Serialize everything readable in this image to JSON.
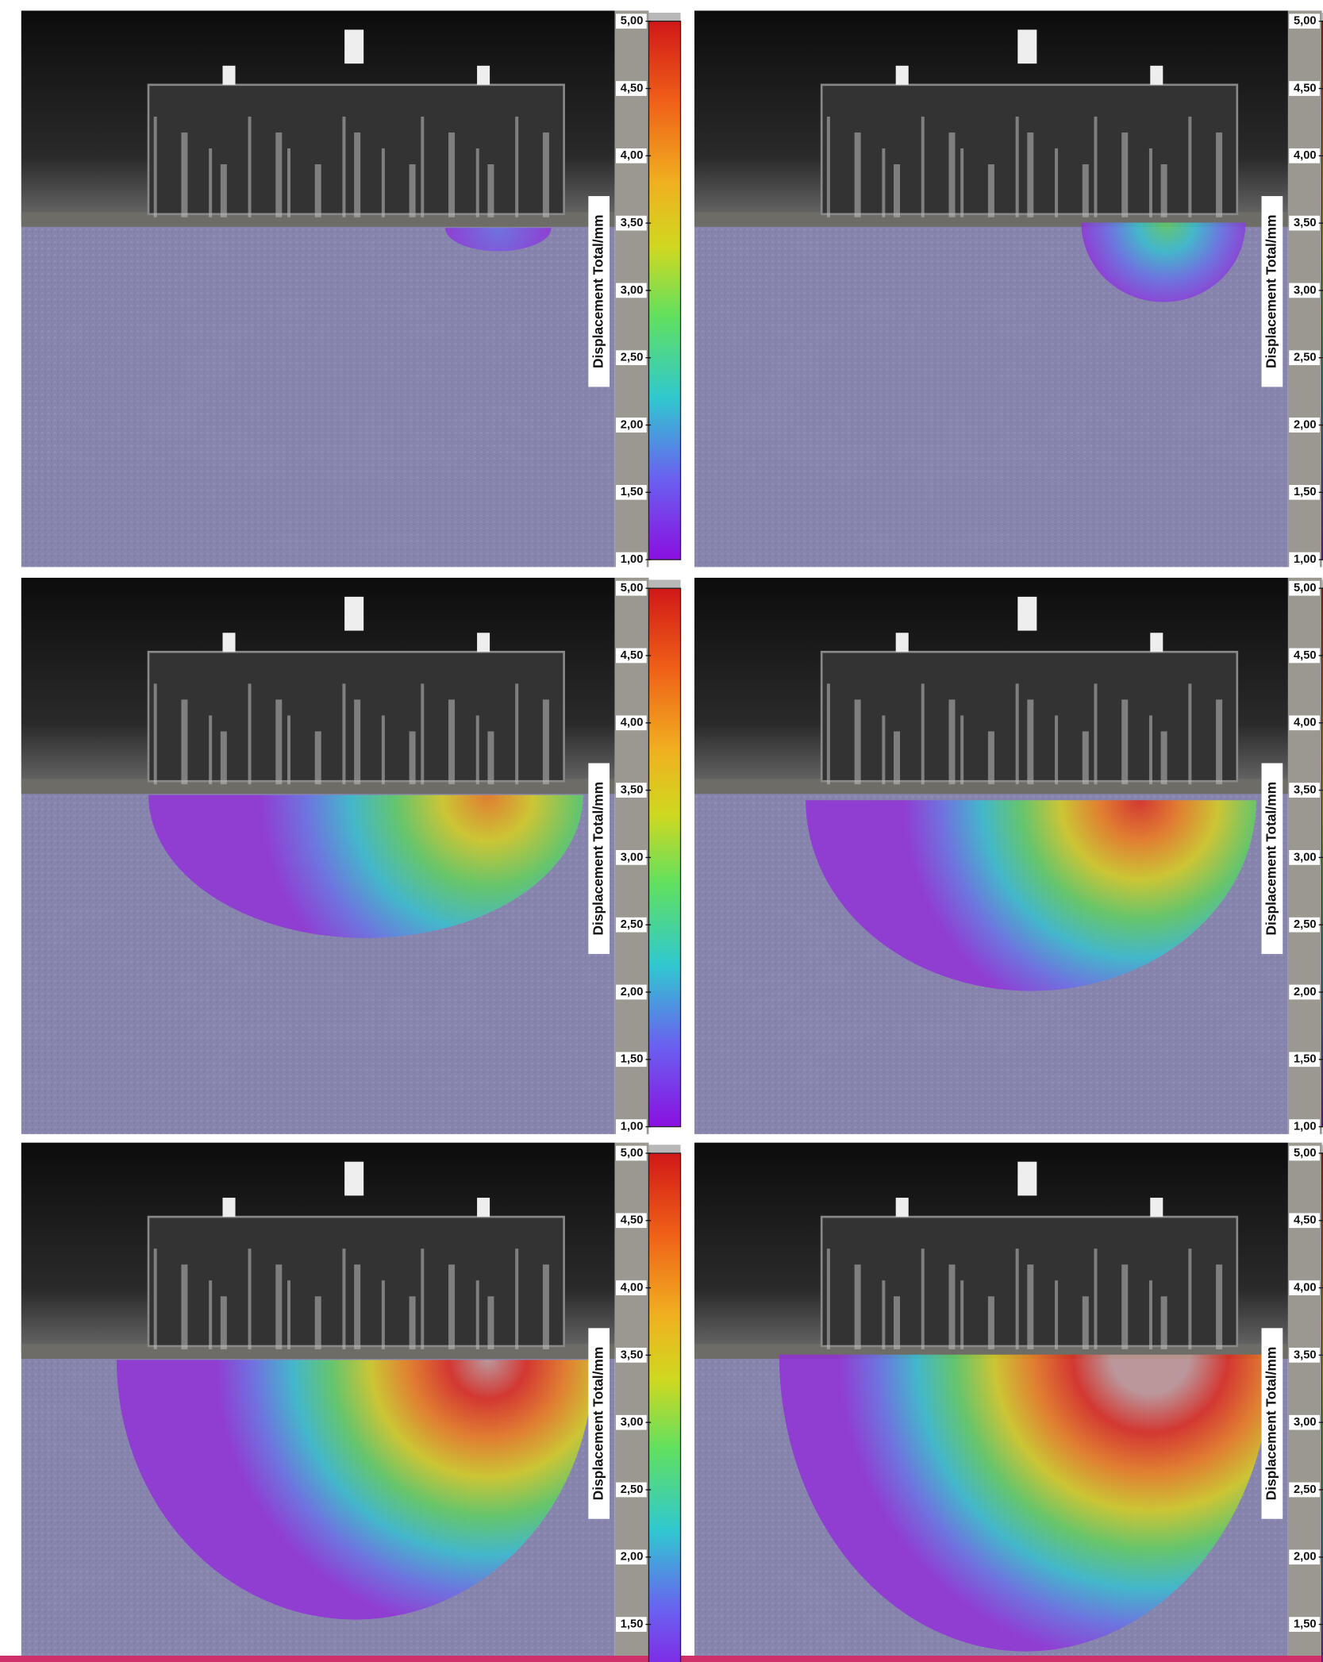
{
  "panels": [
    {
      "colorbar": {
        "label": "Displacement Total/mm",
        "lim": [
          1,
          5
        ],
        "ticks": [
          {
            "value": 5,
            "label": "5,00"
          },
          {
            "value": 4.5,
            "label": "4,50"
          },
          {
            "value": 4,
            "label": "4,00"
          },
          {
            "value": 3.5,
            "label": "3,50"
          },
          {
            "value": 3,
            "label": "3,00"
          },
          {
            "value": 2.5,
            "label": "2,50"
          },
          {
            "value": 2,
            "label": "2,00"
          },
          {
            "value": 1.5,
            "label": "1,50"
          },
          {
            "value": 1,
            "label": "1,00"
          }
        ]
      }
    },
    {
      "colorbar": {
        "label": "Displacement Total/mm",
        "lim": [
          1,
          5
        ],
        "ticks": [
          {
            "value": 5,
            "label": "5,00"
          },
          {
            "value": 4.5,
            "label": "4,50"
          },
          {
            "value": 4,
            "label": "4,00"
          },
          {
            "value": 3.5,
            "label": "3,50"
          },
          {
            "value": 3,
            "label": "3,00"
          },
          {
            "value": 2.5,
            "label": "2,50"
          },
          {
            "value": 2,
            "label": "2,00"
          },
          {
            "value": 1.5,
            "label": "1,50"
          },
          {
            "value": 1,
            "label": "1,00"
          }
        ]
      }
    },
    {
      "colorbar": {
        "label": "Displacement Total/mm",
        "lim": [
          1,
          5
        ],
        "ticks": [
          {
            "value": 5,
            "label": "5,00"
          },
          {
            "value": 4.5,
            "label": "4,50"
          },
          {
            "value": 4,
            "label": "4,00"
          },
          {
            "value": 3.5,
            "label": "3,50"
          },
          {
            "value": 3,
            "label": "3,00"
          },
          {
            "value": 2.5,
            "label": "2,50"
          },
          {
            "value": 2,
            "label": "2,00"
          },
          {
            "value": 1.5,
            "label": "1,50"
          },
          {
            "value": 1,
            "label": "1,00"
          }
        ]
      }
    },
    {
      "colorbar": {
        "label": "Displacement Total/mm",
        "lim": [
          1,
          5
        ],
        "ticks": [
          {
            "value": 5,
            "label": "5,00"
          },
          {
            "value": 4.5,
            "label": "4,50"
          },
          {
            "value": 4,
            "label": "4,00"
          },
          {
            "value": 3.5,
            "label": "3,50"
          },
          {
            "value": 3,
            "label": "3,00"
          },
          {
            "value": 2.5,
            "label": "2,50"
          },
          {
            "value": 2,
            "label": "2,00"
          },
          {
            "value": 1.5,
            "label": "1,50"
          },
          {
            "value": 1,
            "label": "1,00"
          }
        ]
      }
    },
    {
      "colorbar": {
        "label": "Displacement Total/mm",
        "lim": [
          1,
          5
        ],
        "ticks": [
          {
            "value": 5,
            "label": "5,00"
          },
          {
            "value": 4.5,
            "label": "4,50"
          },
          {
            "value": 4,
            "label": "4,00"
          },
          {
            "value": 3.5,
            "label": "3,50"
          },
          {
            "value": 3,
            "label": "3,00"
          },
          {
            "value": 2.5,
            "label": "2,50"
          },
          {
            "value": 2,
            "label": "2,00"
          },
          {
            "value": 1.5,
            "label": "1,50"
          }
        ]
      }
    },
    {
      "colorbar": {
        "label": "Displacement Total/mm",
        "lim": [
          1,
          5
        ],
        "ticks": [
          {
            "value": 5,
            "label": "5,00"
          },
          {
            "value": 4.5,
            "label": "4,50"
          },
          {
            "value": 4,
            "label": "4,00"
          },
          {
            "value": 3.5,
            "label": "3,50"
          },
          {
            "value": 3,
            "label": "3,00"
          },
          {
            "value": 2.5,
            "label": "2,50"
          },
          {
            "value": 2,
            "label": "2,00"
          },
          {
            "value": 1.5,
            "label": "1,50"
          }
        ]
      }
    }
  ]
}
